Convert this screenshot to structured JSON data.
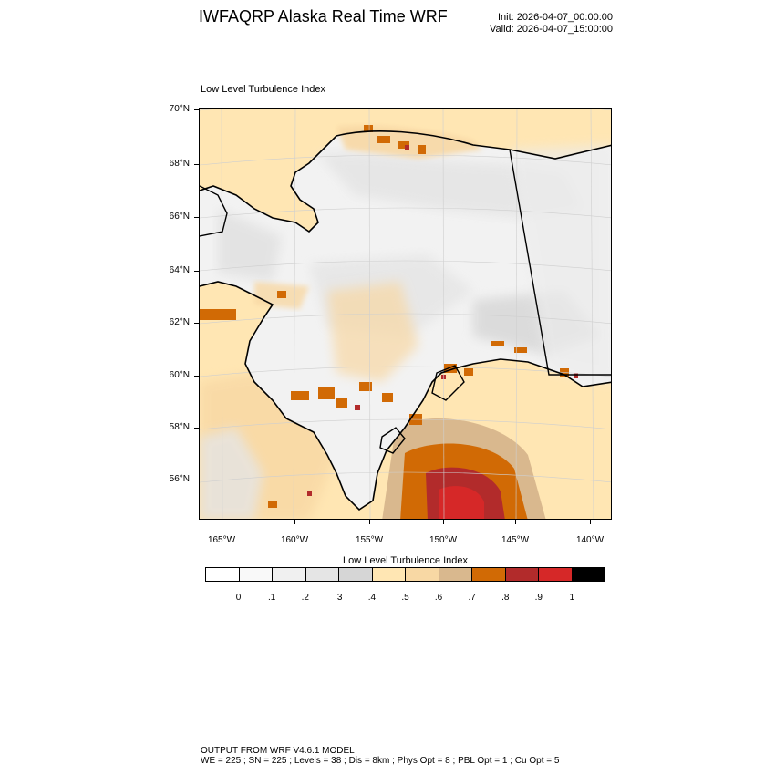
{
  "header": {
    "title": "IWFAQRP Alaska Real Time WRF",
    "init": "Init: 2026-04-07_00:00:00",
    "valid": "Valid: 2026-04-07_15:00:00"
  },
  "map": {
    "title": "Low Level Turbulence Index",
    "lat_labels": [
      "70°N",
      "68°N",
      "66°N",
      "64°N",
      "62°N",
      "60°N",
      "58°N",
      "56°N"
    ],
    "lon_labels": [
      "165°W",
      "160°W",
      "155°W",
      "150°W",
      "145°W",
      "140°W"
    ],
    "land_color": "#f2f2f2",
    "coast_color": "#000000"
  },
  "colorbar": {
    "title": "Low Level Turbulence Index",
    "labels": [
      "0",
      ".1",
      ".2",
      ".3",
      ".4",
      ".5",
      ".6",
      ".7",
      ".8",
      ".9",
      "1"
    ],
    "colors": [
      "#ffffff",
      "#f9f9f9",
      "#f0f0f0",
      "#e5e5e5",
      "#d6d6d6",
      "#ffe6b3",
      "#f8d8a4",
      "#d9b88e",
      "#d16a05",
      "#b22b2b",
      "#d62828",
      "#000000"
    ]
  },
  "footer": {
    "line1": "OUTPUT FROM WRF V4.6.1 MODEL",
    "line2": "WE = 225 ; SN = 225 ; Levels = 38 ; Dis = 8km ; Phys Opt = 8 ; PBL Opt = 1 ; Cu Opt = 5"
  }
}
